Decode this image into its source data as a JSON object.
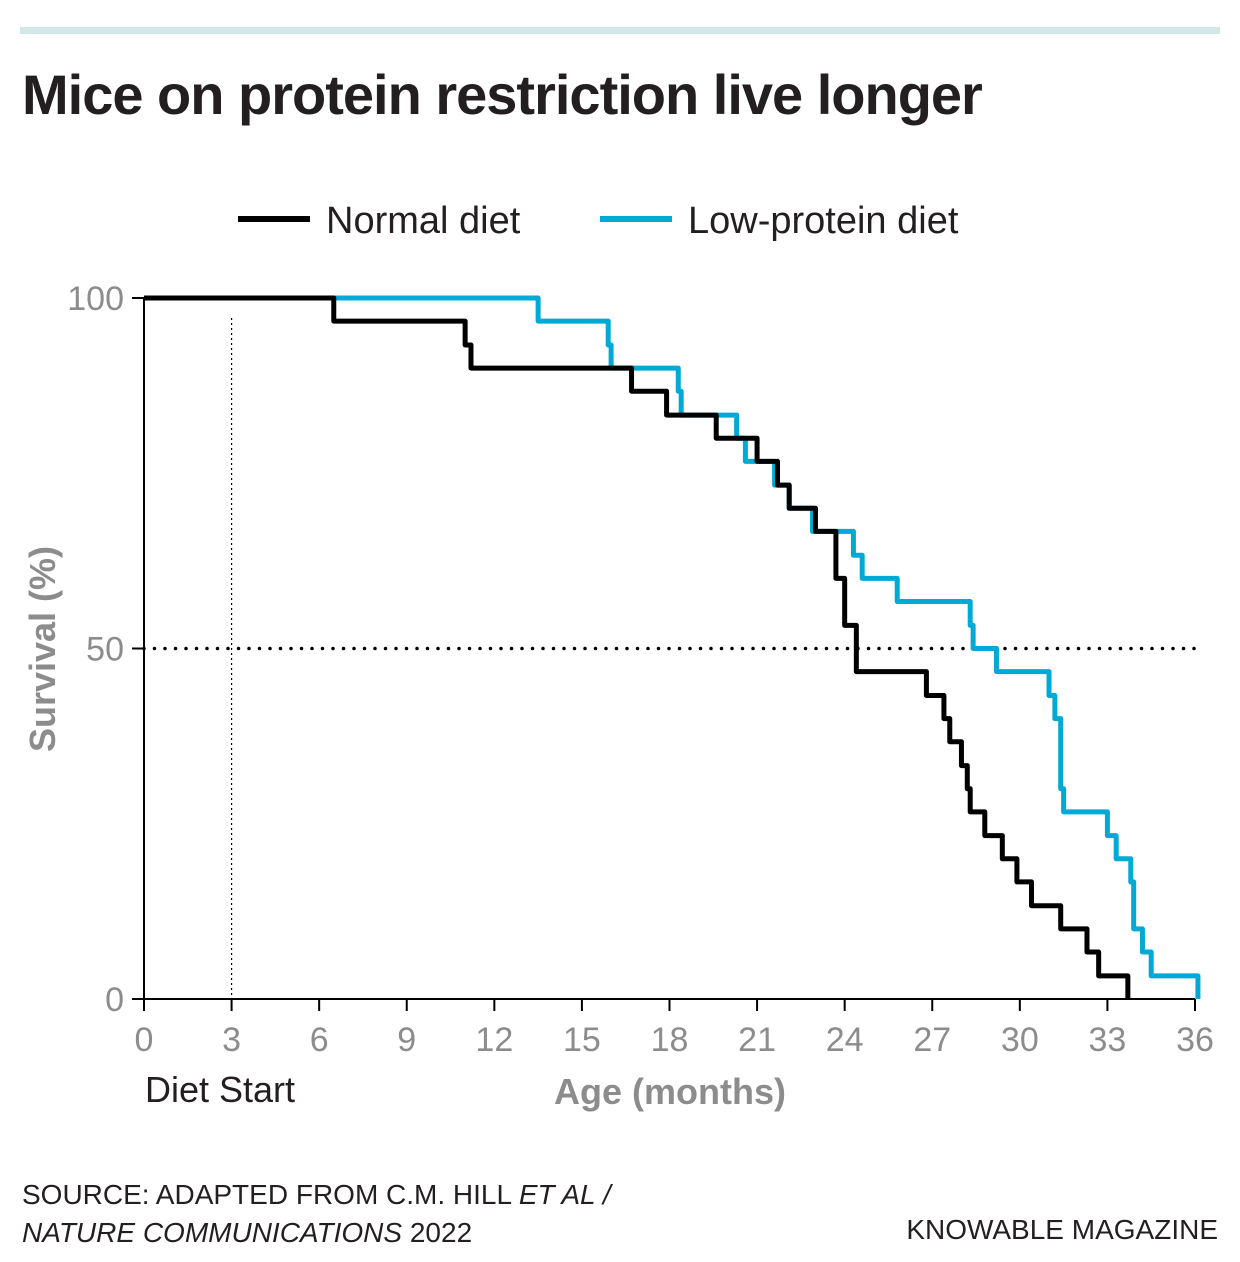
{
  "title": "Mice on protein restriction live longer",
  "source_line1": "SOURCE: ADAPTED FROM C.M. HILL ",
  "source_italic1": "ET AL /",
  "source_italic2": "NATURE COMMUNICATIONS",
  "source_line2": " 2022",
  "brand": "KNOWABLE MAGAZINE",
  "chart_data": {
    "type": "line",
    "step": true,
    "xlabel": "Age (months)",
    "ylabel": "Survival (%)",
    "xlim": [
      0,
      36
    ],
    "ylim": [
      0,
      100
    ],
    "xticks": [
      0,
      3,
      6,
      9,
      12,
      15,
      18,
      21,
      24,
      27,
      30,
      33,
      36
    ],
    "yticks": [
      0,
      50,
      100
    ],
    "legend_position": "top",
    "annotations": [
      {
        "type": "vline",
        "x": 3,
        "label": "Diet Start",
        "style": "dotted"
      },
      {
        "type": "hline",
        "y": 50,
        "style": "dotted"
      }
    ],
    "series": [
      {
        "name": "Normal diet",
        "color": "#000000",
        "x": [
          0,
          6.5,
          11.0,
          11.2,
          16.7,
          17.9,
          19.6,
          21.0,
          21.7,
          22.1,
          23.0,
          23.7,
          24.0,
          24.4,
          26.8,
          27.4,
          27.6,
          28.0,
          28.2,
          28.3,
          28.8,
          29.4,
          29.9,
          30.4,
          31.4,
          32.3,
          32.7,
          33.7
        ],
        "y": [
          100,
          96.7,
          93.3,
          90,
          86.7,
          83.3,
          80,
          76.7,
          73.3,
          70,
          66.7,
          60,
          53.3,
          46.7,
          43.3,
          40,
          36.7,
          33.3,
          30,
          26.7,
          23.3,
          20,
          16.7,
          13.3,
          10,
          6.7,
          3.3,
          0
        ]
      },
      {
        "name": "Low-protein diet",
        "color": "#00aad4",
        "x": [
          0,
          13.5,
          15.9,
          16.0,
          18.3,
          18.4,
          20.3,
          20.6,
          21.6,
          22.1,
          22.9,
          24.3,
          24.6,
          25.8,
          28.3,
          28.4,
          29.2,
          31.0,
          31.2,
          31.4,
          31.5,
          33.0,
          33.3,
          33.8,
          33.9,
          34.2,
          34.5,
          36.1
        ],
        "y": [
          100,
          96.7,
          93.3,
          90,
          86.7,
          83.3,
          80,
          76.7,
          73.3,
          70,
          66.7,
          63.3,
          60,
          56.7,
          53.3,
          50,
          46.7,
          43.3,
          40,
          30,
          26.7,
          23.3,
          20,
          16.7,
          10,
          6.7,
          3.3,
          0
        ]
      }
    ]
  }
}
